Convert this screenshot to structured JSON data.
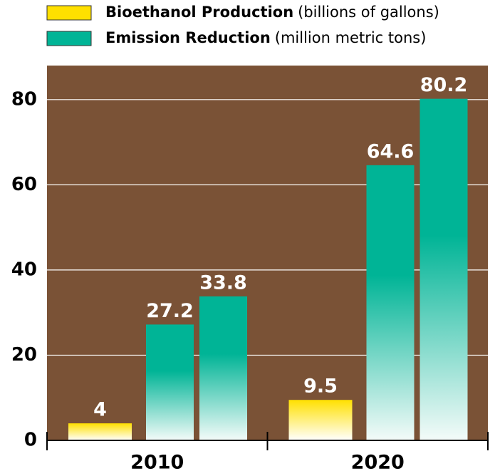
{
  "chart_data": {
    "type": "bar",
    "categories": [
      "2010",
      "2020"
    ],
    "series": [
      {
        "name": "Bioethanol Production",
        "unit": "(billions of gallons)",
        "color": "#ffe000",
        "values": [
          4,
          9.5
        ]
      },
      {
        "name": "Emission Reduction",
        "unit": "(million metric tons)",
        "color": "#00b496",
        "values": [
          [
            27.2,
            33.8
          ],
          [
            64.6,
            80.2
          ]
        ]
      }
    ],
    "ylim": [
      0,
      88
    ],
    "yticks": [
      0,
      20,
      40,
      60,
      80
    ],
    "grid": true,
    "background": "#7a5236"
  }
}
